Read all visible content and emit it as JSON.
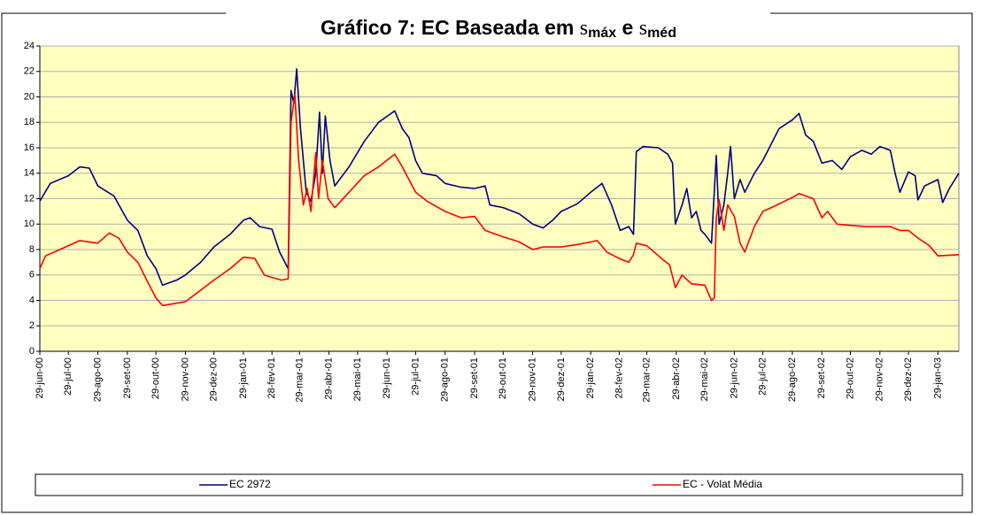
{
  "chart_data": {
    "type": "line",
    "title": {
      "text": "Gráfico 7: EC Baseada em",
      "sym1": "s",
      "sub1": "máx",
      "join": "e",
      "sym2": "s",
      "sub2": "méd"
    },
    "xlim": [
      "2000-06-29",
      "2003-02-20"
    ],
    "xticks": [
      {
        "value": "2000-06-29",
        "label": "29-jun-00"
      },
      {
        "value": "2000-07-29",
        "label": "29-jul-00"
      },
      {
        "value": "2000-08-29",
        "label": "29-ago-00"
      },
      {
        "value": "2000-09-29",
        "label": "29-set-00"
      },
      {
        "value": "2000-10-29",
        "label": "29-out-00"
      },
      {
        "value": "2000-11-29",
        "label": "29-nov-00"
      },
      {
        "value": "2000-12-29",
        "label": "29-dez-00"
      },
      {
        "value": "2001-01-29",
        "label": "29-jan-01"
      },
      {
        "value": "2001-02-28",
        "label": "28-fev-01"
      },
      {
        "value": "2001-03-29",
        "label": "29-mar-01"
      },
      {
        "value": "2001-04-29",
        "label": "29-abr-01"
      },
      {
        "value": "2001-05-29",
        "label": "29-mai-01"
      },
      {
        "value": "2001-06-29",
        "label": "29-jun-01"
      },
      {
        "value": "2001-07-29",
        "label": "29-jul-01"
      },
      {
        "value": "2001-08-29",
        "label": "29-ago-01"
      },
      {
        "value": "2001-09-29",
        "label": "29-set-01"
      },
      {
        "value": "2001-10-29",
        "label": "29-out-01"
      },
      {
        "value": "2001-11-29",
        "label": "29-nov-01"
      },
      {
        "value": "2001-12-29",
        "label": "29-dez-01"
      },
      {
        "value": "2002-01-29",
        "label": "29-jan-02"
      },
      {
        "value": "2002-02-28",
        "label": "28-fev-02"
      },
      {
        "value": "2002-03-29",
        "label": "29-mar-02"
      },
      {
        "value": "2002-04-29",
        "label": "29-abr-02"
      },
      {
        "value": "2002-05-29",
        "label": "29-mai-02"
      },
      {
        "value": "2002-06-29",
        "label": "29-jun-02"
      },
      {
        "value": "2002-07-29",
        "label": "29-jul-02"
      },
      {
        "value": "2002-08-29",
        "label": "29-ago-02"
      },
      {
        "value": "2002-09-29",
        "label": "29-set-02"
      },
      {
        "value": "2002-10-29",
        "label": "29-out-02"
      },
      {
        "value": "2002-11-29",
        "label": "29-nov-02"
      },
      {
        "value": "2002-12-29",
        "label": "29-dez-02"
      },
      {
        "value": "2003-01-29",
        "label": "29-jan-03"
      }
    ],
    "ylim": [
      0,
      24
    ],
    "yticks": [
      0,
      2,
      4,
      6,
      8,
      10,
      12,
      14,
      16,
      18,
      20,
      22,
      24
    ],
    "grid": true,
    "series": [
      {
        "name": "EC 2972",
        "color": "#000080",
        "x": [
          "2000-06-29",
          "2000-07-10",
          "2000-07-29",
          "2000-08-10",
          "2000-08-20",
          "2000-08-29",
          "2000-09-15",
          "2000-09-29",
          "2000-10-10",
          "2000-10-20",
          "2000-10-29",
          "2000-11-05",
          "2000-11-20",
          "2000-11-29",
          "2000-12-15",
          "2000-12-29",
          "2001-01-15",
          "2001-01-29",
          "2001-02-05",
          "2001-02-15",
          "2001-02-28",
          "2001-03-08",
          "2001-03-17",
          "2001-03-20",
          "2001-03-23",
          "2001-03-26",
          "2001-03-30",
          "2001-04-05",
          "2001-04-10",
          "2001-04-15",
          "2001-04-19",
          "2001-04-22",
          "2001-04-25",
          "2001-04-30",
          "2001-05-05",
          "2001-05-20",
          "2001-06-05",
          "2001-06-20",
          "2001-07-07",
          "2001-07-15",
          "2001-07-22",
          "2001-07-29",
          "2001-08-05",
          "2001-08-20",
          "2001-08-29",
          "2001-09-15",
          "2001-09-29",
          "2001-10-10",
          "2001-10-15",
          "2001-10-29",
          "2001-11-15",
          "2001-11-29",
          "2001-12-10",
          "2001-12-20",
          "2001-12-29",
          "2002-01-15",
          "2002-01-29",
          "2002-02-10",
          "2002-02-20",
          "2002-03-01",
          "2002-03-10",
          "2002-03-15",
          "2002-03-18",
          "2002-03-25",
          "2002-04-10",
          "2002-04-20",
          "2002-04-25",
          "2002-04-28",
          "2002-05-05",
          "2002-05-10",
          "2002-05-15",
          "2002-05-20",
          "2002-05-25",
          "2002-05-29",
          "2002-06-05",
          "2002-06-10",
          "2002-06-13",
          "2002-06-18",
          "2002-06-22",
          "2002-06-25",
          "2002-06-29",
          "2002-07-05",
          "2002-07-10",
          "2002-07-20",
          "2002-07-29",
          "2002-08-15",
          "2002-08-29",
          "2002-09-05",
          "2002-09-12",
          "2002-09-20",
          "2002-09-29",
          "2002-10-10",
          "2002-10-20",
          "2002-10-29",
          "2002-11-10",
          "2002-11-20",
          "2002-11-29",
          "2002-12-10",
          "2002-12-15",
          "2002-12-20",
          "2002-12-29",
          "2003-01-05",
          "2003-01-08",
          "2003-01-15",
          "2003-01-29",
          "2003-02-03",
          "2003-02-10",
          "2003-02-20"
        ],
        "values": [
          11.8,
          13.2,
          13.8,
          14.5,
          14.4,
          13.0,
          12.2,
          10.3,
          9.5,
          7.5,
          6.5,
          5.2,
          5.6,
          6.0,
          7.0,
          8.2,
          9.2,
          10.3,
          10.5,
          9.8,
          9.6,
          7.8,
          6.5,
          20.5,
          19.5,
          22.2,
          17.5,
          12.5,
          11.8,
          14.0,
          18.8,
          14.0,
          18.5,
          15.0,
          13.0,
          14.5,
          16.5,
          18.0,
          18.9,
          17.5,
          16.8,
          15.0,
          14.0,
          13.8,
          13.2,
          12.9,
          12.8,
          13.0,
          11.5,
          11.3,
          10.8,
          10.0,
          9.7,
          10.3,
          11.0,
          11.6,
          12.5,
          13.2,
          11.5,
          9.5,
          9.8,
          9.2,
          15.7,
          16.1,
          16.0,
          15.5,
          14.8,
          10.0,
          11.5,
          12.8,
          10.5,
          11.0,
          9.5,
          9.2,
          8.5,
          15.4,
          10.0,
          11.5,
          14.0,
          16.1,
          12.0,
          13.5,
          12.5,
          14.0,
          15.0,
          17.5,
          18.2,
          18.7,
          17.0,
          16.5,
          14.8,
          15.0,
          14.3,
          15.3,
          15.8,
          15.5,
          16.1,
          15.8,
          14.0,
          12.5,
          14.1,
          13.8,
          11.9,
          13.0,
          13.5,
          11.7,
          12.8,
          14.0
        ]
      },
      {
        "name": "EC - Volat Média",
        "color": "#ff0000",
        "x": [
          "2000-06-29",
          "2000-07-05",
          "2000-07-20",
          "2000-08-10",
          "2000-08-29",
          "2000-09-10",
          "2000-09-20",
          "2000-09-29",
          "2000-10-10",
          "2000-10-20",
          "2000-10-29",
          "2000-11-05",
          "2000-11-29",
          "2000-12-15",
          "2000-12-29",
          "2001-01-15",
          "2001-01-29",
          "2001-02-10",
          "2001-02-20",
          "2001-02-28",
          "2001-03-10",
          "2001-03-17",
          "2001-03-20",
          "2001-03-24",
          "2001-03-28",
          "2001-04-02",
          "2001-04-06",
          "2001-04-10",
          "2001-04-15",
          "2001-04-18",
          "2001-04-22",
          "2001-04-28",
          "2001-05-05",
          "2001-05-20",
          "2001-06-05",
          "2001-06-20",
          "2001-07-07",
          "2001-07-15",
          "2001-07-29",
          "2001-08-10",
          "2001-08-29",
          "2001-09-15",
          "2001-09-29",
          "2001-10-10",
          "2001-10-29",
          "2001-11-15",
          "2001-11-29",
          "2001-12-10",
          "2001-12-29",
          "2002-01-15",
          "2002-01-29",
          "2002-02-05",
          "2002-02-15",
          "2002-02-28",
          "2002-03-10",
          "2002-03-15",
          "2002-03-18",
          "2002-03-29",
          "2002-04-15",
          "2002-04-22",
          "2002-04-28",
          "2002-05-05",
          "2002-05-15",
          "2002-05-29",
          "2002-06-05",
          "2002-06-08",
          "2002-06-10",
          "2002-06-13",
          "2002-06-18",
          "2002-06-22",
          "2002-06-29",
          "2002-07-05",
          "2002-07-10",
          "2002-07-20",
          "2002-07-29",
          "2002-08-10",
          "2002-08-29",
          "2002-09-05",
          "2002-09-20",
          "2002-09-29",
          "2002-10-05",
          "2002-10-15",
          "2002-10-29",
          "2002-11-15",
          "2002-11-29",
          "2002-12-10",
          "2002-12-20",
          "2002-12-29",
          "2003-01-10",
          "2003-01-20",
          "2003-01-29",
          "2003-02-20"
        ],
        "values": [
          6.5,
          7.5,
          8.0,
          8.7,
          8.5,
          9.3,
          8.9,
          7.8,
          7.0,
          5.5,
          4.2,
          3.6,
          3.9,
          4.8,
          5.6,
          6.5,
          7.4,
          7.3,
          6.0,
          5.8,
          5.6,
          5.7,
          18.0,
          20.2,
          15.0,
          11.5,
          12.8,
          11.0,
          15.6,
          12.0,
          15.0,
          12.0,
          11.3,
          12.5,
          13.8,
          14.5,
          15.5,
          14.5,
          12.5,
          11.8,
          11.0,
          10.5,
          10.6,
          9.5,
          9.0,
          8.6,
          8.0,
          8.2,
          8.2,
          8.4,
          8.6,
          8.7,
          7.8,
          7.3,
          7.0,
          7.6,
          8.5,
          8.3,
          7.2,
          6.8,
          5.0,
          6.0,
          5.3,
          5.2,
          4.0,
          4.2,
          10.5,
          11.9,
          9.5,
          11.5,
          10.6,
          8.5,
          7.8,
          9.8,
          11.0,
          11.4,
          12.1,
          12.4,
          12.0,
          10.5,
          11.0,
          10.0,
          9.9,
          9.8,
          9.8,
          9.8,
          9.5,
          9.5,
          8.8,
          8.3,
          7.5,
          7.6
        ]
      }
    ]
  }
}
